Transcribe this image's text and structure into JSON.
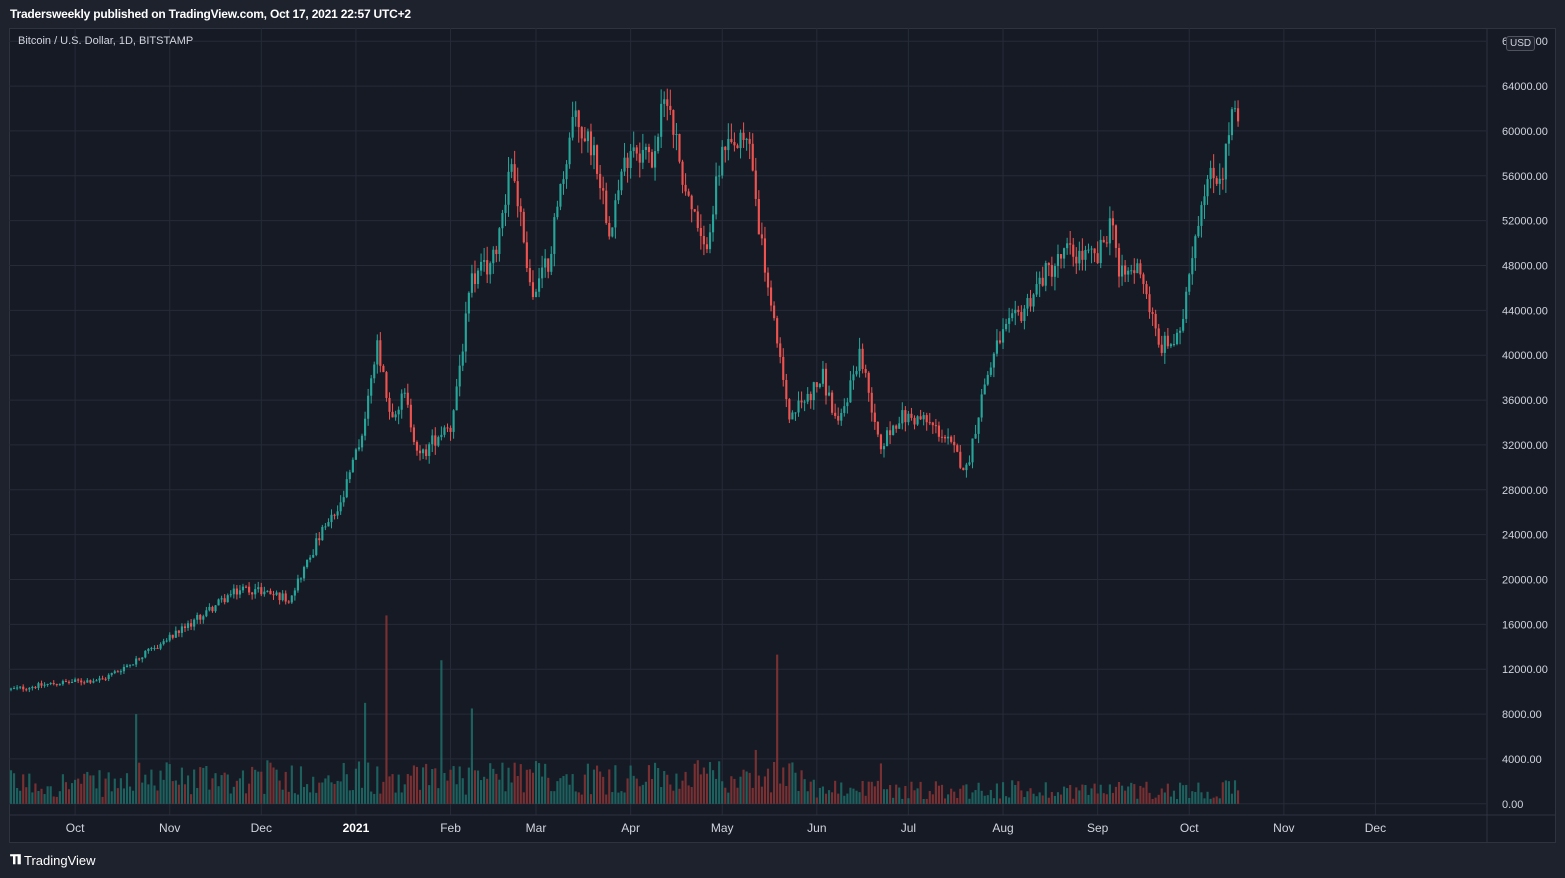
{
  "header": {
    "published": "Tradersweekly published on TradingView.com, Oct 17, 2021 22:57 UTC+2"
  },
  "footer": {
    "brand": "TradingView",
    "icon": "tradingview-logo-icon"
  },
  "colors": {
    "up": "#26a69a",
    "down": "#ef5350",
    "grid": "#262b38",
    "text": "#d1d4dc",
    "volume_up": "#1f6e68",
    "volume_down": "#8a3535"
  },
  "chart_data": {
    "type": "candlestick",
    "title": "Bitcoin / U.S. Dollar, 1D, BITSTAMP",
    "currency_badge": "USD",
    "interval": "1D",
    "x_tick_labels": [
      "Oct",
      "Nov",
      "Dec",
      "2021",
      "Feb",
      "Mar",
      "Apr",
      "May",
      "Jun",
      "Jul",
      "Aug",
      "Sep",
      "Oct",
      "Nov",
      "Dec"
    ],
    "y_tick_labels": [
      "0.00",
      "4000.00",
      "8000.00",
      "12000.00",
      "16000.00",
      "20000.00",
      "24000.00",
      "28000.00",
      "32000.00",
      "36000.00",
      "40000.00",
      "44000.00",
      "48000.00",
      "52000.00",
      "56000.00",
      "60000.00",
      "64000.00",
      "68000.00"
    ],
    "ylim": [
      -1000,
      69000
    ],
    "grid": true,
    "price_path": [
      [
        "2020-09-10",
        10200
      ],
      [
        "2020-09-25",
        10750
      ],
      [
        "2020-10-10",
        11100
      ],
      [
        "2020-10-21",
        12800
      ],
      [
        "2020-11-05",
        15500
      ],
      [
        "2020-11-20",
        18500
      ],
      [
        "2020-11-25",
        19200
      ],
      [
        "2020-12-01",
        19000
      ],
      [
        "2020-12-10",
        18300
      ],
      [
        "2020-12-16",
        21500
      ],
      [
        "2020-12-20",
        23800
      ],
      [
        "2020-12-27",
        26500
      ],
      [
        "2021-01-03",
        33000
      ],
      [
        "2021-01-08",
        40500
      ],
      [
        "2021-01-12",
        35000
      ],
      [
        "2021-01-17",
        36200
      ],
      [
        "2021-01-22",
        30800
      ],
      [
        "2021-01-28",
        33000
      ],
      [
        "2021-02-01",
        33500
      ],
      [
        "2021-02-08",
        46500
      ],
      [
        "2021-02-15",
        48500
      ],
      [
        "2021-02-21",
        57500
      ],
      [
        "2021-02-28",
        45000
      ],
      [
        "2021-03-05",
        48500
      ],
      [
        "2021-03-13",
        61000
      ],
      [
        "2021-03-20",
        58500
      ],
      [
        "2021-03-25",
        51500
      ],
      [
        "2021-04-01",
        59000
      ],
      [
        "2021-04-08",
        57500
      ],
      [
        "2021-04-13",
        63600
      ],
      [
        "2021-04-18",
        56000
      ],
      [
        "2021-04-25",
        49000
      ],
      [
        "2021-05-01",
        57800
      ],
      [
        "2021-05-10",
        59000
      ],
      [
        "2021-05-14",
        49500
      ],
      [
        "2021-05-18",
        42500
      ],
      [
        "2021-05-23",
        34600
      ],
      [
        "2021-05-28",
        36000
      ],
      [
        "2021-06-03",
        38000
      ],
      [
        "2021-06-08",
        33500
      ],
      [
        "2021-06-15",
        40300
      ],
      [
        "2021-06-22",
        32000
      ],
      [
        "2021-06-28",
        34500
      ],
      [
        "2021-07-06",
        34200
      ],
      [
        "2021-07-12",
        33000
      ],
      [
        "2021-07-20",
        29800
      ],
      [
        "2021-07-26",
        37500
      ],
      [
        "2021-07-31",
        41500
      ],
      [
        "2021-08-07",
        43800
      ],
      [
        "2021-08-14",
        47000
      ],
      [
        "2021-08-22",
        49200
      ],
      [
        "2021-09-01",
        48500
      ],
      [
        "2021-09-06",
        52500
      ],
      [
        "2021-09-08",
        46800
      ],
      [
        "2021-09-15",
        47900
      ],
      [
        "2021-09-21",
        40700
      ],
      [
        "2021-09-28",
        41400
      ],
      [
        "2021-10-01",
        48000
      ],
      [
        "2021-10-06",
        55300
      ],
      [
        "2021-10-12",
        56500
      ],
      [
        "2021-10-15",
        61500
      ],
      [
        "2021-10-17",
        60500
      ]
    ],
    "volume_spikes": [
      [
        "2021-01-11",
        16800
      ],
      [
        "2021-01-29",
        12800
      ],
      [
        "2021-05-19",
        13300
      ],
      [
        "2020-10-21",
        8000
      ],
      [
        "2021-01-04",
        9000
      ],
      [
        "2021-02-08",
        8500
      ],
      [
        "2021-05-12",
        4800
      ],
      [
        "2021-06-22",
        3600
      ]
    ]
  }
}
